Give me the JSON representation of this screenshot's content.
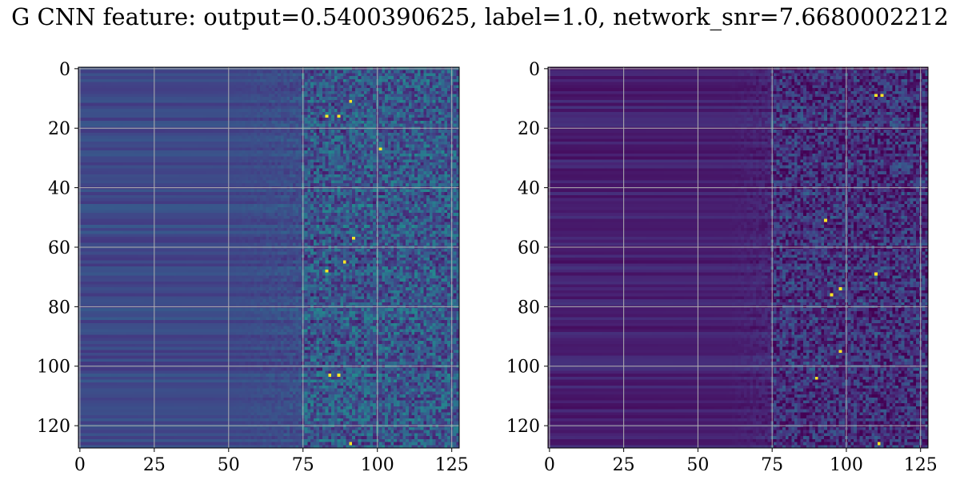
{
  "figure": {
    "title": "G CNN feature: output=0.5400390625, label=1.0, network_snr=7.6680002212"
  },
  "chart_data": [
    {
      "type": "heatmap",
      "colormap": "viridis",
      "grid": true,
      "x_ticks": [
        0,
        25,
        50,
        75,
        100,
        125
      ],
      "y_ticks": [
        0,
        20,
        40,
        60,
        80,
        100,
        120
      ],
      "xlim": [
        0,
        127
      ],
      "ylim": [
        127,
        0
      ],
      "n_rows": 128,
      "n_cols": 128,
      "background_level": 0.22,
      "noise_onset_col": 50,
      "noisy_region_start_col": 75,
      "noise_amplitude": 0.35,
      "hot_pixels": [
        [
          11,
          91
        ],
        [
          16,
          83
        ],
        [
          16,
          87
        ],
        [
          27,
          101
        ],
        [
          57,
          92
        ],
        [
          65,
          89
        ],
        [
          68,
          83
        ],
        [
          103,
          84
        ],
        [
          103,
          87
        ],
        [
          126,
          91
        ]
      ]
    },
    {
      "type": "heatmap",
      "colormap": "viridis",
      "grid": true,
      "x_ticks": [
        0,
        25,
        50,
        75,
        100,
        125
      ],
      "y_ticks": [
        0,
        20,
        40,
        60,
        80,
        100,
        120
      ],
      "xlim": [
        0,
        127
      ],
      "ylim": [
        127,
        0
      ],
      "n_rows": 128,
      "n_cols": 128,
      "background_level": 0.09,
      "noise_onset_col": 60,
      "noisy_region_start_col": 75,
      "noise_amplitude": 0.32,
      "hot_pixels": [
        [
          9,
          110
        ],
        [
          9,
          112
        ],
        [
          51,
          93
        ],
        [
          69,
          110
        ],
        [
          74,
          98
        ],
        [
          76,
          95
        ],
        [
          95,
          98
        ],
        [
          104,
          90
        ],
        [
          126,
          111
        ]
      ]
    }
  ]
}
